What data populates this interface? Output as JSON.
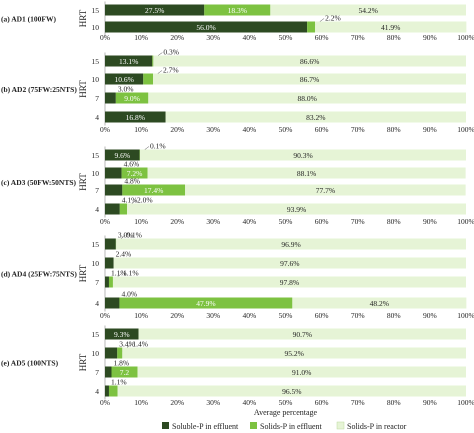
{
  "chart_data": {
    "type": "bar",
    "orientation": "horizontal",
    "stacked": true,
    "xlabel": "Average percentage",
    "ylabel": "HRT",
    "xlim": [
      0,
      100
    ],
    "x_ticks": [
      "0%",
      "10%",
      "20%",
      "30%",
      "40%",
      "50%",
      "60%",
      "70%",
      "80%",
      "90%",
      "100%"
    ],
    "series_colors": [
      "#2d4a22",
      "#7dc241",
      "#e6f4d6"
    ],
    "legend": {
      "position": "bottom",
      "entries": [
        "Soluble-P in effluent",
        "Solids-P in effluent",
        "Solids-P in reactor"
      ]
    },
    "panels": [
      {
        "title": "(a) AD1 (100FW)",
        "categories": [
          "15",
          "10"
        ],
        "series": [
          {
            "name": "Soluble-P in effluent",
            "values": [
              27.5,
              56.0
            ]
          },
          {
            "name": "Solids-P in effluent",
            "values": [
              18.3,
              2.2
            ]
          },
          {
            "name": "Solids-P in reactor",
            "values": [
              54.2,
              41.9
            ]
          }
        ],
        "labels": [
          [
            "27.5%",
            "18.3%",
            "54.2%"
          ],
          [
            "56.0%",
            "2.2%",
            "41.9%"
          ]
        ]
      },
      {
        "title": "(b) AD2 (75FW:25NTS)",
        "categories": [
          "15",
          "10",
          "7",
          "4"
        ],
        "series": [
          {
            "name": "Soluble-P in effluent",
            "values": [
              13.1,
              10.6,
              3.0,
              16.8
            ]
          },
          {
            "name": "Solids-P in effluent",
            "values": [
              0.3,
              2.7,
              9.0,
              0
            ]
          },
          {
            "name": "Solids-P in reactor",
            "values": [
              86.6,
              86.7,
              88.0,
              83.2
            ]
          }
        ],
        "labels": [
          [
            "13.1%",
            "0.3%",
            "86.6%"
          ],
          [
            "10.6%",
            "2.7%",
            "86.7%"
          ],
          [
            "3.0%",
            "9.0%",
            "88.0%"
          ],
          [
            "16.8%",
            "",
            "83.2%"
          ]
        ]
      },
      {
        "title": "(c) AD3 (50FW:50NTS)",
        "categories": [
          "15",
          "10",
          "7",
          "4"
        ],
        "series": [
          {
            "name": "Soluble-P in effluent",
            "values": [
              9.6,
              4.6,
              4.8,
              4.1
            ]
          },
          {
            "name": "Solids-P in effluent",
            "values": [
              0.1,
              7.2,
              17.4,
              2.0
            ]
          },
          {
            "name": "Solids-P in reactor",
            "values": [
              90.3,
              88.1,
              77.7,
              93.9
            ]
          }
        ],
        "labels": [
          [
            "9.6%",
            "0.1%",
            "90.3%"
          ],
          [
            "4.6%",
            "7.2%",
            "88.1%"
          ],
          [
            "4.8%",
            "17.4%",
            "77.7%"
          ],
          [
            "4.1%",
            "2.0%",
            "93.9%"
          ]
        ]
      },
      {
        "title": "(d) AD4 (25FW:75NTS)",
        "categories": [
          "15",
          "10",
          "7",
          "4"
        ],
        "series": [
          {
            "name": "Soluble-P in effluent",
            "values": [
              3.0,
              2.4,
              1.1,
              4.0
            ]
          },
          {
            "name": "Solids-P in effluent",
            "values": [
              0.1,
              0,
              1.1,
              47.9
            ]
          },
          {
            "name": "Solids-P in reactor",
            "values": [
              96.9,
              97.6,
              97.8,
              48.2
            ]
          }
        ],
        "labels": [
          [
            "3.0%",
            "0.1%",
            "96.9%"
          ],
          [
            "2.4%",
            "",
            "97.6%"
          ],
          [
            "1.1%",
            "1.1%",
            "97.8%"
          ],
          [
            "4.0%",
            "47.9%",
            "48.2%"
          ]
        ]
      },
      {
        "title": "(e) AD5 (100NTS)",
        "categories": [
          "15",
          "10",
          "7",
          "4"
        ],
        "series": [
          {
            "name": "Soluble-P in effluent",
            "values": [
              9.3,
              3.4,
              1.8,
              1.1
            ]
          },
          {
            "name": "Solids-P in effluent",
            "values": [
              0,
              1.4,
              7.2,
              2.4
            ]
          },
          {
            "name": "Solids-P in reactor",
            "values": [
              90.7,
              95.2,
              91.0,
              96.5
            ]
          }
        ],
        "labels": [
          [
            "9.3%",
            "",
            "90.7%"
          ],
          [
            "3.4%",
            "1.4%",
            "95.2%"
          ],
          [
            "1.8%",
            "7.2",
            "91.0%"
          ],
          [
            "1.1%",
            "",
            "96.5%"
          ]
        ]
      }
    ]
  }
}
